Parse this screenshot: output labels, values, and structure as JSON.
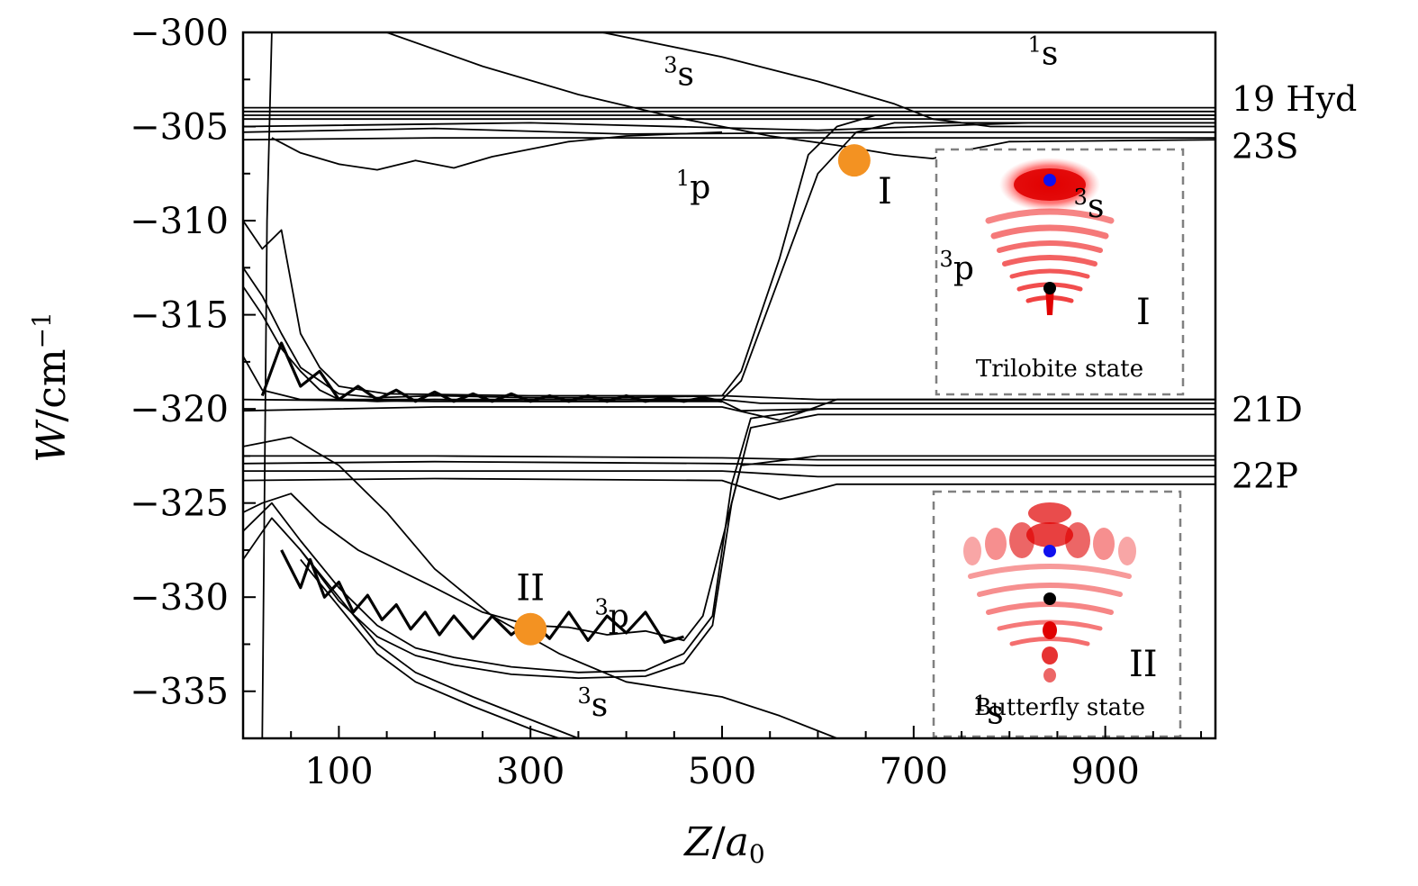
{
  "chart_data": {
    "type": "line",
    "xlabel_var": "Z",
    "xlabel_unit": "a",
    "xlabel_sub": "0",
    "ylabel_var": "W",
    "ylabel_unit": "/cm",
    "ylabel_sup": "−1",
    "xlim": [
      0,
      1015
    ],
    "ylim": [
      -337.5,
      -300
    ],
    "xticks": [
      100,
      300,
      500,
      700,
      900
    ],
    "xtick_labels": [
      "100",
      "300",
      "500",
      "700",
      "900"
    ],
    "yticks": [
      -300,
      -305,
      -310,
      -315,
      -320,
      -325,
      -330,
      -335
    ],
    "ytick_labels": [
      "−300",
      "−305",
      "−310",
      "−315",
      "−320",
      "−325",
      "−330",
      "−335"
    ],
    "grid": false,
    "asymptote_labels": [
      {
        "text": "19 Hyd",
        "y": -303.5
      },
      {
        "text": "23S",
        "y": -306
      },
      {
        "text": "21D",
        "y": -320
      },
      {
        "text": "22P",
        "y": -323.5
      }
    ],
    "curve_labels": [
      {
        "sup": "1",
        "base": "s",
        "x": 835,
        "y": -301.7
      },
      {
        "sup": "3",
        "base": "s",
        "x": 455,
        "y": -302.8
      },
      {
        "sup": "1",
        "base": "p",
        "x": 470,
        "y": -308.8
      },
      {
        "sup": "3",
        "base": "s",
        "x": 883,
        "y": -309.8
      },
      {
        "sup": "3",
        "base": "p",
        "x": 745,
        "y": -313.1
      },
      {
        "sup": "3",
        "base": "p",
        "x": 385,
        "y": -331.6
      },
      {
        "sup": "3",
        "base": "s",
        "x": 365,
        "y": -336.3
      },
      {
        "sup": "1",
        "base": "s",
        "x": 778,
        "y": -336.7
      }
    ],
    "points": [
      {
        "label": "I",
        "x": 638,
        "y": -306.8,
        "color": "#f39222"
      },
      {
        "label": "II",
        "x": 300,
        "y": -331.7,
        "color": "#f39222"
      }
    ],
    "series": [
      {
        "values": [
          [
            20,
            -337.5
          ],
          [
            25,
            -310
          ],
          [
            30,
            -300
          ]
        ]
      },
      {
        "values": [
          [
            0,
            -304
          ],
          [
            1015,
            -304
          ]
        ]
      },
      {
        "values": [
          [
            0,
            -304.2
          ],
          [
            1015,
            -304.2
          ]
        ]
      },
      {
        "values": [
          [
            0,
            -304.4
          ],
          [
            1015,
            -304.4
          ]
        ]
      },
      {
        "values": [
          [
            0,
            -304.6
          ],
          [
            1015,
            -304.6
          ]
        ]
      },
      {
        "values": [
          [
            0,
            -305
          ],
          [
            300,
            -304.8
          ],
          [
            600,
            -305.2
          ],
          [
            820,
            -304.8
          ],
          [
            1015,
            -304.8
          ]
        ]
      },
      {
        "values": [
          [
            0,
            -305.3
          ],
          [
            200,
            -305.1
          ],
          [
            400,
            -305.4
          ],
          [
            700,
            -305.3
          ],
          [
            1015,
            -305.3
          ]
        ]
      },
      {
        "values": [
          [
            0,
            -305.7
          ],
          [
            200,
            -305.6
          ],
          [
            500,
            -305.6
          ],
          [
            800,
            -305.6
          ],
          [
            1015,
            -305.6
          ]
        ]
      },
      {
        "values": [
          [
            30,
            -305.6
          ],
          [
            60,
            -306.4
          ],
          [
            100,
            -307.0
          ],
          [
            140,
            -307.3
          ],
          [
            180,
            -306.8
          ],
          [
            220,
            -307.2
          ],
          [
            260,
            -306.6
          ],
          [
            300,
            -306.2
          ],
          [
            340,
            -305.8
          ],
          [
            400,
            -305.5
          ],
          [
            450,
            -305.4
          ],
          [
            500,
            -305.3
          ]
        ]
      },
      {
        "values": [
          [
            150,
            -300
          ],
          [
            250,
            -301.8
          ],
          [
            350,
            -303.3
          ],
          [
            450,
            -304.5
          ],
          [
            550,
            -305.5
          ],
          [
            620,
            -306.0
          ],
          [
            680,
            -306.5
          ],
          [
            720,
            -306.7
          ],
          [
            750,
            -306.3
          ],
          [
            800,
            -305.8
          ],
          [
            1015,
            -305.7
          ]
        ]
      },
      {
        "values": [
          [
            375,
            -300
          ],
          [
            500,
            -301.3
          ],
          [
            600,
            -302.6
          ],
          [
            680,
            -303.8
          ],
          [
            720,
            -304.6
          ],
          [
            780,
            -305.0
          ],
          [
            1015,
            -305.0
          ]
        ]
      },
      {
        "values": [
          [
            0,
            -312.5
          ],
          [
            20,
            -314
          ],
          [
            40,
            -316
          ],
          [
            60,
            -317.8
          ],
          [
            80,
            -318.5
          ],
          [
            100,
            -319.2
          ],
          [
            140,
            -319.4
          ],
          [
            200,
            -319.3
          ],
          [
            300,
            -319.4
          ],
          [
            400,
            -319.4
          ],
          [
            500,
            -319.3
          ],
          [
            520,
            -318
          ],
          [
            560,
            -312
          ],
          [
            590,
            -306.5
          ],
          [
            620,
            -305
          ],
          [
            660,
            -304.4
          ],
          [
            1015,
            -304.4
          ]
        ]
      },
      {
        "values": [
          [
            0,
            -313.5
          ],
          [
            20,
            -315
          ],
          [
            40,
            -316.8
          ],
          [
            60,
            -318
          ],
          [
            80,
            -319
          ],
          [
            100,
            -319.5
          ],
          [
            140,
            -319.6
          ],
          [
            200,
            -319.5
          ],
          [
            300,
            -319.6
          ],
          [
            400,
            -319.6
          ],
          [
            500,
            -319.5
          ],
          [
            520,
            -318.5
          ],
          [
            560,
            -313
          ],
          [
            600,
            -307.5
          ],
          [
            640,
            -305.3
          ],
          [
            680,
            -304.8
          ],
          [
            1015,
            -304.8
          ]
        ]
      },
      {
        "values": [
          [
            0,
            -317.2
          ],
          [
            20,
            -319
          ],
          [
            60,
            -319.5
          ],
          [
            200,
            -319.5
          ],
          [
            500,
            -319.5
          ],
          [
            540,
            -319.7
          ],
          [
            1015,
            -319.7
          ]
        ]
      },
      {
        "values": [
          [
            0,
            -319.5
          ],
          [
            200,
            -319.6
          ],
          [
            500,
            -319.6
          ],
          [
            520,
            -320.1
          ],
          [
            600,
            -320.0
          ],
          [
            1015,
            -320.0
          ]
        ]
      },
      {
        "values": [
          [
            0,
            -320.1
          ],
          [
            200,
            -319.9
          ],
          [
            500,
            -319.9
          ],
          [
            560,
            -320.6
          ],
          [
            620,
            -319.5
          ],
          [
            1015,
            -319.5
          ]
        ]
      },
      {
        "values": [
          [
            0,
            -322.5
          ],
          [
            200,
            -322.5
          ],
          [
            500,
            -322.6
          ],
          [
            600,
            -322.7
          ],
          [
            1015,
            -322.7
          ]
        ]
      },
      {
        "values": [
          [
            0,
            -322.9
          ],
          [
            200,
            -322.8
          ],
          [
            500,
            -322.9
          ],
          [
            600,
            -323.0
          ],
          [
            1015,
            -323.0
          ]
        ]
      },
      {
        "values": [
          [
            0,
            -323.3
          ],
          [
            200,
            -323.3
          ],
          [
            500,
            -323.3
          ],
          [
            600,
            -323.6
          ],
          [
            1015,
            -323.6
          ]
        ]
      },
      {
        "values": [
          [
            0,
            -323.8
          ],
          [
            200,
            -323.7
          ],
          [
            500,
            -323.8
          ],
          [
            560,
            -324.8
          ],
          [
            620,
            -324.0
          ],
          [
            1015,
            -324.0
          ]
        ]
      },
      {
        "values": [
          [
            0,
            -325.5
          ],
          [
            20,
            -325
          ],
          [
            50,
            -324.5
          ],
          [
            80,
            -326
          ],
          [
            120,
            -327.5
          ],
          [
            160,
            -328.5
          ],
          [
            200,
            -329.5
          ],
          [
            250,
            -330.8
          ],
          [
            300,
            -331.5
          ],
          [
            340,
            -331.6
          ],
          [
            380,
            -332.0
          ],
          [
            420,
            -331.8
          ],
          [
            460,
            -332.3
          ],
          [
            480,
            -331.0
          ],
          [
            500,
            -327
          ],
          [
            520,
            -323
          ],
          [
            600,
            -322.5
          ],
          [
            1015,
            -322.5
          ]
        ]
      },
      {
        "values": [
          [
            0,
            -326.5
          ],
          [
            30,
            -325
          ],
          [
            60,
            -327
          ],
          [
            100,
            -329.5
          ],
          [
            140,
            -331.5
          ],
          [
            180,
            -332.7
          ],
          [
            220,
            -333.2
          ],
          [
            280,
            -333.7
          ],
          [
            350,
            -334.0
          ],
          [
            420,
            -333.9
          ],
          [
            460,
            -333.0
          ],
          [
            490,
            -331
          ],
          [
            510,
            -324
          ],
          [
            530,
            -320.5
          ],
          [
            600,
            -320.0
          ],
          [
            1015,
            -320.0
          ]
        ]
      },
      {
        "values": [
          [
            0,
            -328
          ],
          [
            30,
            -325.8
          ],
          [
            60,
            -327.5
          ],
          [
            100,
            -330.2
          ],
          [
            140,
            -332.1
          ],
          [
            180,
            -333.1
          ],
          [
            220,
            -333.6
          ],
          [
            280,
            -334.1
          ],
          [
            350,
            -334.3
          ],
          [
            420,
            -334.2
          ],
          [
            460,
            -333.5
          ],
          [
            490,
            -331.5
          ],
          [
            510,
            -325
          ],
          [
            530,
            -321
          ],
          [
            600,
            -320.3
          ],
          [
            1015,
            -320.3
          ]
        ]
      },
      {
        "values": [
          [
            60,
            -327.5
          ],
          [
            100,
            -330
          ],
          [
            140,
            -332.5
          ],
          [
            180,
            -334
          ],
          [
            240,
            -335.3
          ],
          [
            300,
            -336.5
          ],
          [
            350,
            -337.5
          ]
        ]
      },
      {
        "values": [
          [
            60,
            -328
          ],
          [
            100,
            -330.5
          ],
          [
            140,
            -333
          ],
          [
            180,
            -334.5
          ],
          [
            240,
            -335.8
          ],
          [
            300,
            -337.0
          ],
          [
            330,
            -337.5
          ]
        ]
      },
      {
        "values": [
          [
            0,
            -322
          ],
          [
            50,
            -321.5
          ],
          [
            100,
            -323
          ],
          [
            150,
            -325.5
          ],
          [
            200,
            -328.5
          ],
          [
            260,
            -331
          ],
          [
            330,
            -333
          ],
          [
            400,
            -334.5
          ],
          [
            500,
            -335.3
          ],
          [
            560,
            -336.3
          ],
          [
            620,
            -337.5
          ]
        ]
      },
      {
        "values": [
          [
            0,
            -310
          ],
          [
            20,
            -311.5
          ],
          [
            40,
            -310.5
          ],
          [
            60,
            -316
          ],
          [
            80,
            -317.8
          ],
          [
            100,
            -318.8
          ],
          [
            150,
            -319.2
          ],
          [
            300,
            -319.3
          ],
          [
            500,
            -319.3
          ],
          [
            600,
            -319.5
          ],
          [
            1015,
            -319.5
          ]
        ]
      }
    ],
    "zigzag_series": [
      {
        "values": [
          [
            40,
            -327.5
          ],
          [
            60,
            -329.5
          ],
          [
            70,
            -328.0
          ],
          [
            85,
            -330.0
          ],
          [
            100,
            -329.2
          ],
          [
            115,
            -330.8
          ],
          [
            130,
            -329.9
          ],
          [
            145,
            -331.2
          ],
          [
            160,
            -330.4
          ],
          [
            175,
            -331.7
          ],
          [
            190,
            -330.8
          ],
          [
            205,
            -332.0
          ],
          [
            220,
            -331.0
          ],
          [
            240,
            -332.2
          ],
          [
            260,
            -331.0
          ],
          [
            280,
            -332.0
          ],
          [
            300,
            -331.2
          ],
          [
            320,
            -332.2
          ],
          [
            340,
            -330.8
          ],
          [
            360,
            -332.3
          ],
          [
            380,
            -331.0
          ],
          [
            400,
            -331.9
          ],
          [
            420,
            -330.8
          ],
          [
            440,
            -332.4
          ],
          [
            460,
            -332.1
          ]
        ]
      },
      {
        "values": [
          [
            20,
            -319.3
          ],
          [
            40,
            -316.5
          ],
          [
            60,
            -318.8
          ],
          [
            80,
            -318.0
          ],
          [
            100,
            -319.5
          ],
          [
            120,
            -318.8
          ],
          [
            140,
            -319.5
          ],
          [
            160,
            -319.0
          ],
          [
            180,
            -319.6
          ],
          [
            200,
            -319.1
          ],
          [
            220,
            -319.6
          ],
          [
            240,
            -319.2
          ],
          [
            260,
            -319.6
          ],
          [
            280,
            -319.2
          ],
          [
            300,
            -319.6
          ],
          [
            320,
            -319.3
          ],
          [
            340,
            -319.6
          ],
          [
            360,
            -319.3
          ],
          [
            380,
            -319.6
          ],
          [
            400,
            -319.3
          ],
          [
            420,
            -319.6
          ],
          [
            440,
            -319.4
          ],
          [
            460,
            -319.6
          ],
          [
            480,
            -319.4
          ],
          [
            500,
            -319.6
          ]
        ]
      }
    ],
    "insets": [
      {
        "label": "I",
        "caption": "Trilobite state"
      },
      {
        "label": "II",
        "caption": "Butterfly state"
      }
    ]
  }
}
